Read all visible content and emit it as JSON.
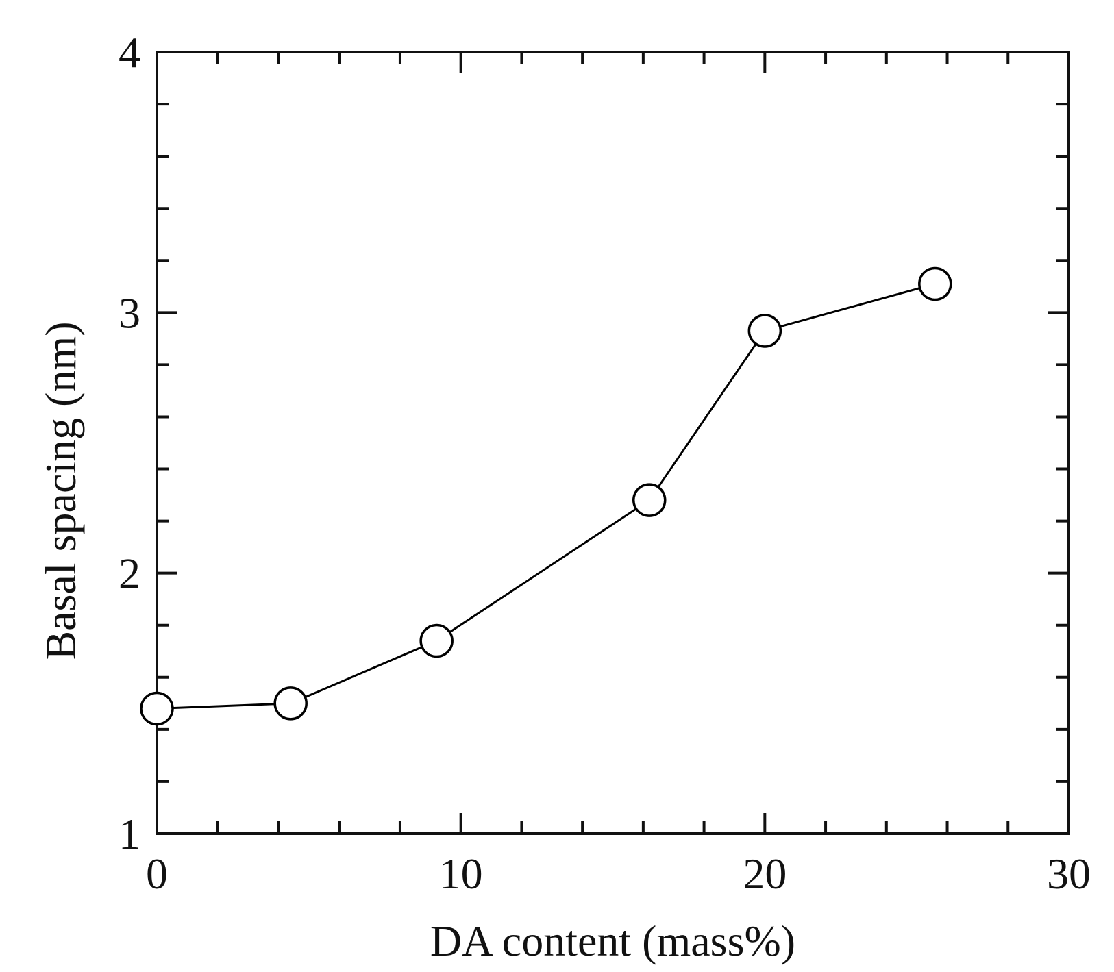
{
  "chart_data": {
    "type": "line",
    "xlabel": "DA content (mass%)",
    "ylabel": "Basal spacing (nm)",
    "xlim": [
      0,
      30
    ],
    "ylim": [
      1,
      4
    ],
    "xticks_major": [
      0,
      10,
      20,
      30
    ],
    "yticks_major": [
      1,
      2,
      3,
      4
    ],
    "xtick_labels": [
      "0",
      "10",
      "20",
      "30"
    ],
    "ytick_labels": [
      "1",
      "2",
      "3",
      "4"
    ],
    "x_minor_step": 2,
    "y_minor_step": 0.2,
    "grid": false,
    "series": [
      {
        "marker": "open-circle",
        "color": "#000000",
        "x": [
          0,
          4.4,
          9.2,
          16.2,
          20.0,
          25.6
        ],
        "y": [
          1.48,
          1.5,
          1.74,
          2.28,
          2.93,
          3.11
        ]
      }
    ]
  }
}
